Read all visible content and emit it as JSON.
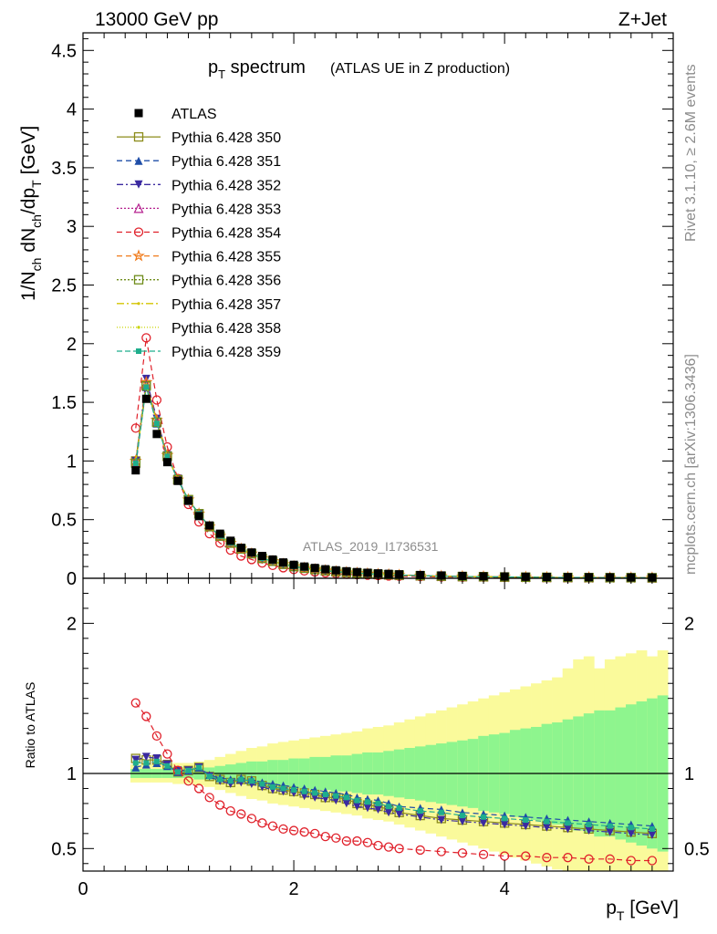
{
  "header": {
    "left": "13000 GeV pp",
    "right": "Z+Jet"
  },
  "side_text": {
    "rivet": "Rivet 3.1.10, ≥ 2.6M events",
    "mcplots": "mcplots.cern.ch [arXiv:1306.3436]"
  },
  "chart_data": [
    {
      "type": "line",
      "title_main": "p",
      "title_sub": "T",
      "title_rest": " spectrum",
      "title_note": "(ATLAS UE in Z production)",
      "watermark": "ATLAS_2019_I1736531",
      "ylabel_parts": [
        "1/N",
        "ch",
        " dN",
        "ch",
        "/dp",
        "T",
        " [GeV]"
      ],
      "ylim": [
        0,
        4.65
      ],
      "xlim": [
        0,
        5.6
      ],
      "yticks": [
        "0",
        "0.5",
        "1",
        "1.5",
        "2",
        "2.5",
        "3",
        "3.5",
        "4",
        "4.5"
      ],
      "ytick_values": [
        0,
        0.5,
        1,
        1.5,
        2,
        2.5,
        3,
        3.5,
        4,
        4.5
      ],
      "grid": false,
      "legend_position": "top-left",
      "x": [
        0.5,
        0.6,
        0.7,
        0.8,
        0.9,
        1.0,
        1.1,
        1.2,
        1.3,
        1.4,
        1.5,
        1.6,
        1.7,
        1.8,
        1.9,
        2.0,
        2.1,
        2.2,
        2.3,
        2.4,
        2.5,
        2.6,
        2.7,
        2.8,
        2.9,
        3.0,
        3.2,
        3.4,
        3.6,
        3.8,
        4.0,
        4.2,
        4.4,
        4.6,
        4.8,
        5.0,
        5.2,
        5.4
      ],
      "series": [
        {
          "name": "ATLAS",
          "color": "#000000",
          "marker": "filled-square",
          "dash": "none",
          "values": [
            0.92,
            1.53,
            1.23,
            0.99,
            0.83,
            0.66,
            0.53,
            0.45,
            0.38,
            0.32,
            0.26,
            0.22,
            0.19,
            0.16,
            0.135,
            0.115,
            0.1,
            0.088,
            0.077,
            0.068,
            0.06,
            0.053,
            0.047,
            0.042,
            0.038,
            0.034,
            0.028,
            0.024,
            0.02,
            0.017,
            0.015,
            0.013,
            0.011,
            0.01,
            0.009,
            0.008,
            0.007,
            0.006
          ]
        },
        {
          "name": "Pythia 6.428 350",
          "color": "#8c8c1a",
          "marker": "open-square",
          "dash": "solid",
          "values": [
            1.0,
            1.65,
            1.33,
            1.04,
            0.84,
            0.67,
            0.55,
            0.44,
            0.36,
            0.3,
            0.25,
            0.21,
            0.17,
            0.145,
            0.12,
            0.1,
            0.086,
            0.075,
            0.065,
            0.057,
            0.05,
            0.044,
            0.039,
            0.034,
            0.03,
            0.027,
            0.022,
            0.018,
            0.015,
            0.013,
            0.011,
            0.009,
            0.008,
            0.007,
            0.006,
            0.005,
            0.005,
            0.004
          ]
        },
        {
          "name": "Pythia 6.428 351",
          "color": "#1f4ea8",
          "marker": "filled-triangle-up",
          "dash": "6,4",
          "values": [
            0.96,
            1.63,
            1.32,
            1.04,
            0.84,
            0.67,
            0.55,
            0.44,
            0.36,
            0.3,
            0.25,
            0.21,
            0.17,
            0.145,
            0.12,
            0.1,
            0.086,
            0.075,
            0.065,
            0.057,
            0.05,
            0.044,
            0.039,
            0.034,
            0.03,
            0.027,
            0.022,
            0.018,
            0.015,
            0.013,
            0.011,
            0.009,
            0.008,
            0.007,
            0.006,
            0.005,
            0.005,
            0.004
          ]
        },
        {
          "name": "Pythia 6.428 352",
          "color": "#3b2aa0",
          "marker": "filled-triangle-down",
          "dash": "7,3,2,3",
          "values": [
            1.0,
            1.7,
            1.36,
            1.05,
            0.85,
            0.67,
            0.55,
            0.44,
            0.36,
            0.3,
            0.25,
            0.21,
            0.17,
            0.145,
            0.12,
            0.1,
            0.086,
            0.075,
            0.065,
            0.057,
            0.05,
            0.044,
            0.039,
            0.034,
            0.03,
            0.027,
            0.022,
            0.018,
            0.015,
            0.013,
            0.011,
            0.009,
            0.008,
            0.007,
            0.006,
            0.005,
            0.005,
            0.004
          ]
        },
        {
          "name": "Pythia 6.428 353",
          "color": "#b5208f",
          "marker": "open-triangle-up",
          "dash": "2,2",
          "values": [
            0.99,
            1.66,
            1.34,
            1.04,
            0.84,
            0.67,
            0.55,
            0.44,
            0.36,
            0.3,
            0.25,
            0.21,
            0.17,
            0.145,
            0.12,
            0.1,
            0.086,
            0.075,
            0.065,
            0.057,
            0.05,
            0.044,
            0.039,
            0.034,
            0.03,
            0.027,
            0.022,
            0.018,
            0.015,
            0.013,
            0.011,
            0.009,
            0.008,
            0.007,
            0.006,
            0.005,
            0.005,
            0.004
          ]
        },
        {
          "name": "Pythia 6.428 354",
          "color": "#e0202a",
          "marker": "open-circle",
          "dash": "6,4",
          "values": [
            1.28,
            2.05,
            1.52,
            1.12,
            0.85,
            0.63,
            0.48,
            0.38,
            0.3,
            0.24,
            0.19,
            0.16,
            0.13,
            0.11,
            0.09,
            0.075,
            0.063,
            0.054,
            0.046,
            0.04,
            0.034,
            0.03,
            0.026,
            0.023,
            0.02,
            0.018,
            0.015,
            0.012,
            0.01,
            0.009,
            0.008,
            0.007,
            0.006,
            0.005,
            0.004,
            0.004,
            0.003,
            0.003
          ]
        },
        {
          "name": "Pythia 6.428 355",
          "color": "#f07a1a",
          "marker": "open-star",
          "dash": "6,4",
          "values": [
            1.0,
            1.67,
            1.35,
            1.05,
            0.84,
            0.67,
            0.55,
            0.44,
            0.36,
            0.3,
            0.25,
            0.21,
            0.17,
            0.145,
            0.12,
            0.1,
            0.086,
            0.075,
            0.065,
            0.057,
            0.05,
            0.044,
            0.039,
            0.034,
            0.03,
            0.027,
            0.022,
            0.018,
            0.015,
            0.013,
            0.011,
            0.009,
            0.008,
            0.007,
            0.006,
            0.005,
            0.005,
            0.004
          ]
        },
        {
          "name": "Pythia 6.428 356",
          "color": "#6e8c1a",
          "marker": "open-square",
          "dash": "2,2",
          "values": [
            0.98,
            1.64,
            1.33,
            1.04,
            0.84,
            0.67,
            0.55,
            0.44,
            0.36,
            0.3,
            0.25,
            0.21,
            0.17,
            0.145,
            0.12,
            0.1,
            0.086,
            0.075,
            0.065,
            0.057,
            0.05,
            0.044,
            0.039,
            0.034,
            0.03,
            0.027,
            0.022,
            0.018,
            0.015,
            0.013,
            0.011,
            0.009,
            0.008,
            0.007,
            0.006,
            0.005,
            0.005,
            0.004
          ]
        },
        {
          "name": "Pythia 6.428 357",
          "color": "#d4c400",
          "marker": "small-dot",
          "dash": "8,3,2,3",
          "values": [
            0.99,
            1.65,
            1.33,
            1.04,
            0.84,
            0.67,
            0.55,
            0.44,
            0.36,
            0.3,
            0.25,
            0.21,
            0.17,
            0.145,
            0.12,
            0.1,
            0.086,
            0.075,
            0.065,
            0.057,
            0.05,
            0.044,
            0.039,
            0.034,
            0.03,
            0.027,
            0.022,
            0.018,
            0.015,
            0.013,
            0.011,
            0.009,
            0.008,
            0.007,
            0.006,
            0.005,
            0.005,
            0.004
          ]
        },
        {
          "name": "Pythia 6.428 358",
          "color": "#c8d400",
          "marker": "small-dot",
          "dash": "1,2",
          "values": [
            0.98,
            1.64,
            1.33,
            1.04,
            0.84,
            0.67,
            0.55,
            0.44,
            0.36,
            0.3,
            0.25,
            0.21,
            0.17,
            0.145,
            0.12,
            0.1,
            0.086,
            0.075,
            0.065,
            0.057,
            0.05,
            0.044,
            0.039,
            0.034,
            0.03,
            0.027,
            0.022,
            0.018,
            0.015,
            0.013,
            0.011,
            0.009,
            0.008,
            0.007,
            0.006,
            0.005,
            0.005,
            0.004
          ]
        },
        {
          "name": "Pythia 6.428 359",
          "color": "#1fae8c",
          "marker": "filled-square-small",
          "dash": "6,3",
          "values": [
            0.98,
            1.63,
            1.32,
            1.04,
            0.84,
            0.67,
            0.55,
            0.44,
            0.36,
            0.3,
            0.25,
            0.21,
            0.17,
            0.145,
            0.12,
            0.1,
            0.086,
            0.075,
            0.065,
            0.057,
            0.05,
            0.044,
            0.039,
            0.034,
            0.03,
            0.027,
            0.022,
            0.018,
            0.015,
            0.013,
            0.011,
            0.009,
            0.008,
            0.007,
            0.006,
            0.005,
            0.005,
            0.004
          ]
        }
      ]
    },
    {
      "type": "line",
      "ylabel": "Ratio to ATLAS",
      "xlabel_main": "p",
      "xlabel_sub": "T",
      "xlabel_rest": " [GeV]",
      "xlim": [
        0,
        5.6
      ],
      "ylim": [
        0.35,
        2.3
      ],
      "xticks": [
        "0",
        "2",
        "4"
      ],
      "xtick_values": [
        0,
        2,
        4
      ],
      "yticks": [
        "0.5",
        "1",
        "2"
      ],
      "ytick_values": [
        0.5,
        1,
        2
      ],
      "reference_line": 1,
      "bands": {
        "edges": [
          0.45,
          0.55,
          0.65,
          0.75,
          0.85,
          0.95,
          1.05,
          1.15,
          1.25,
          1.35,
          1.45,
          1.55,
          1.65,
          1.75,
          1.85,
          1.95,
          2.05,
          2.15,
          2.25,
          2.35,
          2.45,
          2.55,
          2.65,
          2.75,
          2.85,
          2.95,
          3.05,
          3.15,
          3.25,
          3.35,
          3.45,
          3.55,
          3.65,
          3.75,
          3.85,
          3.95,
          4.05,
          4.15,
          4.25,
          4.35,
          4.45,
          4.55,
          4.65,
          4.75,
          4.85,
          4.95,
          5.05,
          5.15,
          5.25,
          5.35,
          5.45,
          5.55
        ],
        "inner": [
          0.03,
          0.03,
          0.03,
          0.03,
          0.03,
          0.03,
          0.04,
          0.04,
          0.05,
          0.06,
          0.07,
          0.08,
          0.08,
          0.09,
          0.09,
          0.1,
          0.1,
          0.11,
          0.11,
          0.12,
          0.12,
          0.13,
          0.14,
          0.14,
          0.15,
          0.16,
          0.17,
          0.18,
          0.19,
          0.2,
          0.21,
          0.22,
          0.23,
          0.25,
          0.26,
          0.27,
          0.29,
          0.3,
          0.31,
          0.33,
          0.34,
          0.36,
          0.38,
          0.4,
          0.42,
          0.42,
          0.44,
          0.46,
          0.48,
          0.5,
          0.52
        ],
        "outer": [
          0.06,
          0.06,
          0.06,
          0.06,
          0.07,
          0.07,
          0.08,
          0.09,
          0.11,
          0.13,
          0.15,
          0.17,
          0.18,
          0.2,
          0.21,
          0.22,
          0.23,
          0.24,
          0.25,
          0.26,
          0.27,
          0.28,
          0.3,
          0.31,
          0.32,
          0.34,
          0.36,
          0.38,
          0.4,
          0.42,
          0.44,
          0.46,
          0.48,
          0.5,
          0.52,
          0.54,
          0.56,
          0.58,
          0.6,
          0.62,
          0.64,
          0.7,
          0.76,
          0.78,
          0.7,
          0.76,
          0.78,
          0.8,
          0.82,
          0.78,
          0.82
        ],
        "inner_color": "#8ef58e",
        "outer_color": "#fafa9b"
      },
      "series": [
        {
          "name": "Pythia 6.428 350",
          "color": "#8c8c1a",
          "values": [
            1.1,
            1.09,
            1.09,
            1.06,
            1.01,
            1.02,
            1.04,
            0.98,
            0.96,
            0.94,
            0.96,
            0.95,
            0.92,
            0.9,
            0.89,
            0.88,
            0.87,
            0.86,
            0.84,
            0.84,
            0.83,
            0.8,
            0.79,
            0.78,
            0.76,
            0.74,
            0.72,
            0.7,
            0.69,
            0.68,
            0.67,
            0.66,
            0.65,
            0.64,
            0.63,
            0.62,
            0.61,
            0.6
          ]
        },
        {
          "name": "Pythia 6.428 351",
          "color": "#1f4ea8",
          "values": [
            1.04,
            1.06,
            1.07,
            1.05,
            1.01,
            1.02,
            1.04,
            0.99,
            0.97,
            0.96,
            0.97,
            0.96,
            0.94,
            0.93,
            0.92,
            0.91,
            0.9,
            0.89,
            0.88,
            0.87,
            0.86,
            0.84,
            0.83,
            0.82,
            0.8,
            0.78,
            0.77,
            0.76,
            0.74,
            0.73,
            0.72,
            0.71,
            0.7,
            0.69,
            0.68,
            0.67,
            0.66,
            0.65
          ]
        },
        {
          "name": "Pythia 6.428 352",
          "color": "#3b2aa0",
          "values": [
            1.09,
            1.11,
            1.1,
            1.06,
            1.02,
            1.02,
            1.04,
            0.98,
            0.95,
            0.93,
            0.94,
            0.93,
            0.91,
            0.89,
            0.88,
            0.87,
            0.85,
            0.84,
            0.83,
            0.82,
            0.8,
            0.78,
            0.77,
            0.76,
            0.74,
            0.73,
            0.71,
            0.69,
            0.68,
            0.67,
            0.66,
            0.65,
            0.64,
            0.63,
            0.62,
            0.61,
            0.6,
            0.59
          ]
        },
        {
          "name": "Pythia 6.428 354",
          "color": "#e0202a",
          "values": [
            1.47,
            1.38,
            1.25,
            1.13,
            1.02,
            0.95,
            0.9,
            0.84,
            0.79,
            0.75,
            0.73,
            0.7,
            0.67,
            0.65,
            0.63,
            0.62,
            0.61,
            0.6,
            0.58,
            0.57,
            0.55,
            0.55,
            0.54,
            0.52,
            0.51,
            0.5,
            0.49,
            0.48,
            0.47,
            0.46,
            0.45,
            0.45,
            0.44,
            0.44,
            0.43,
            0.43,
            0.42,
            0.42
          ]
        },
        {
          "name": "Pythia 6.428 359",
          "color": "#1fae8c",
          "values": [
            1.07,
            1.07,
            1.08,
            1.05,
            1.01,
            1.02,
            1.04,
            0.98,
            0.96,
            0.95,
            0.96,
            0.95,
            0.93,
            0.91,
            0.9,
            0.89,
            0.88,
            0.87,
            0.86,
            0.85,
            0.84,
            0.82,
            0.81,
            0.8,
            0.78,
            0.77,
            0.75,
            0.74,
            0.72,
            0.71,
            0.7,
            0.69,
            0.68,
            0.67,
            0.66,
            0.65,
            0.64,
            0.63
          ]
        }
      ]
    }
  ]
}
